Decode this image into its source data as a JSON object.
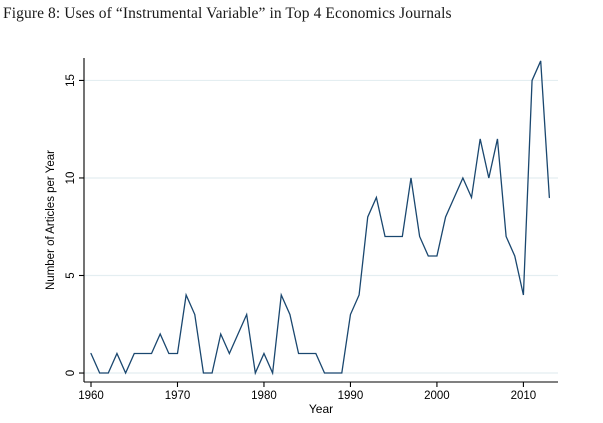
{
  "figure": {
    "title": "Figure 8: Uses of “Instrumental Variable” in Top 4 Economics Journals"
  },
  "chart_data": {
    "type": "line",
    "title": "Figure 8: Uses of “Instrumental Variable” in Top 4 Economics Journals",
    "xlabel": "Year",
    "ylabel": "Number of Articles per Year",
    "series": [
      {
        "name": "Articles per year",
        "x": [
          1960,
          1961,
          1962,
          1963,
          1964,
          1965,
          1966,
          1967,
          1968,
          1969,
          1970,
          1971,
          1972,
          1973,
          1974,
          1975,
          1976,
          1977,
          1978,
          1979,
          1980,
          1981,
          1982,
          1983,
          1984,
          1985,
          1986,
          1987,
          1988,
          1989,
          1990,
          1991,
          1992,
          1993,
          1994,
          1995,
          1996,
          1997,
          1998,
          1999,
          2000,
          2001,
          2002,
          2003,
          2004,
          2005,
          2006,
          2007,
          2008,
          2009,
          2010,
          2011,
          2012,
          2013
        ],
        "values": [
          1,
          0,
          0,
          1,
          0,
          1,
          1,
          1,
          2,
          1,
          1,
          4,
          3,
          0,
          0,
          2,
          1,
          2,
          3,
          0,
          1,
          0,
          4,
          3,
          1,
          1,
          1,
          0,
          0,
          0,
          3,
          4,
          8,
          9,
          7,
          7,
          7,
          10,
          7,
          6,
          6,
          8,
          9,
          10,
          9,
          12,
          10,
          12,
          7,
          6,
          4,
          15,
          16,
          9
        ]
      }
    ],
    "xticks": [
      1960,
      1970,
      1980,
      1990,
      2000,
      2010
    ],
    "yticks": [
      0,
      5,
      10,
      15
    ],
    "xlim": [
      1959.19,
      2014.0
    ],
    "ylim": [
      -0.46,
      16.15
    ],
    "grid": "horizontal-only",
    "legend": "none",
    "colors": {
      "line": "#1a476f",
      "grid": "#e4eef1",
      "axis": "#000000",
      "tick_text": "#000000",
      "background": "#ffffff"
    }
  }
}
